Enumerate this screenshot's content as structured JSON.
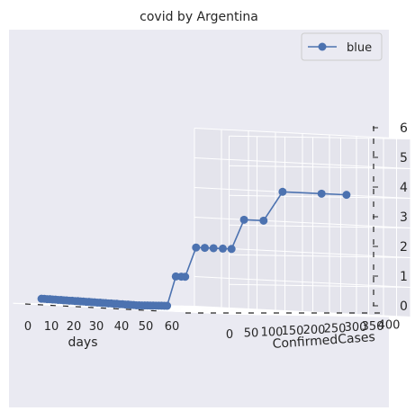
{
  "chart_data": {
    "type": "line",
    "projection": "3d",
    "title": "covid by Argentina",
    "xlabel": "days",
    "ylabel": "ConfirmedCases",
    "zlabel": "",
    "legend": {
      "position": "top-right",
      "entries": [
        "blue"
      ]
    },
    "grid": true,
    "xlim": [
      0,
      65
    ],
    "ylim": [
      0,
      400
    ],
    "zlim": [
      0,
      6
    ],
    "x_ticks": [
      "0",
      "10",
      "20",
      "30",
      "40",
      "50",
      "60"
    ],
    "y_ticks": [
      "0",
      "50",
      "100",
      "150",
      "200",
      "250",
      "300",
      "350",
      "400"
    ],
    "z_ticks": [
      "0",
      "1",
      "2",
      "3",
      "4",
      "5",
      "6"
    ],
    "series": [
      {
        "name": "blue",
        "color": "#4c72b0",
        "x": [
          10,
          11,
          12,
          13,
          14,
          15,
          16,
          17,
          18,
          19,
          20,
          21,
          22,
          23,
          24,
          25,
          26,
          27,
          28,
          29,
          30,
          31,
          32,
          33,
          34,
          35,
          36,
          37,
          38,
          39,
          40,
          41,
          42,
          43,
          44,
          45,
          46,
          47,
          48,
          49,
          50,
          51,
          52,
          53,
          54,
          55,
          56,
          57,
          58,
          59,
          60,
          61,
          62,
          63,
          64,
          65,
          66,
          67,
          68
        ],
        "y": [
          1,
          1,
          1,
          1,
          1,
          1,
          1,
          1,
          1,
          1,
          1,
          1,
          1,
          1,
          1,
          1,
          1,
          1,
          1,
          1,
          1,
          1,
          1,
          1,
          1,
          1,
          1,
          1,
          1,
          1,
          1,
          1,
          1,
          1,
          1,
          1,
          1,
          1,
          1,
          1,
          1,
          1,
          1,
          1,
          1,
          1,
          12,
          17,
          19,
          34,
          45,
          56,
          68,
          79,
          97,
          128,
          158,
          225,
          266
        ],
        "z": [
          0.17,
          0.17,
          0.16,
          0.16,
          0.15,
          0.15,
          0.14,
          0.14,
          0.13,
          0.13,
          0.12,
          0.12,
          0.11,
          0.11,
          0.1,
          0.1,
          0.09,
          0.09,
          0.08,
          0.08,
          0.07,
          0.07,
          0.06,
          0.06,
          0.05,
          0.05,
          0.04,
          0.04,
          0.03,
          0.03,
          0.02,
          0.02,
          0.01,
          0.01,
          0,
          0,
          0,
          0,
          0,
          0,
          0,
          0,
          0,
          0,
          0,
          0,
          1,
          1,
          1,
          2,
          2,
          2,
          2,
          2,
          3,
          3,
          4,
          4,
          4
        ]
      }
    ]
  }
}
